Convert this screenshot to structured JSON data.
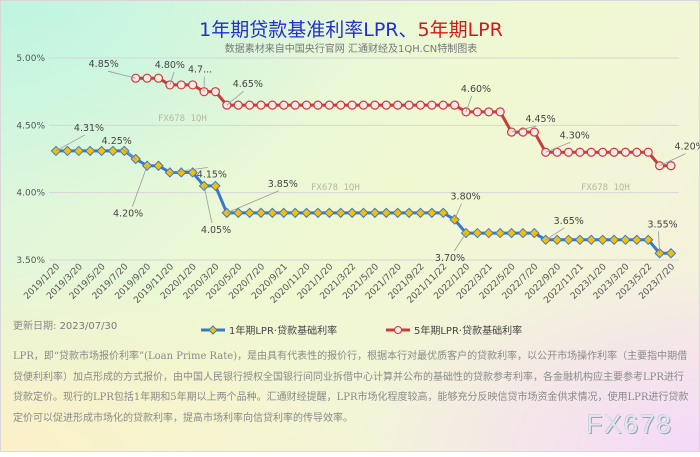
{
  "title": {
    "part1": "1年期贷款基准利率LPR、",
    "part2": "5年期LPR"
  },
  "subtitle": "数据素材来自中国央行官网 汇通财经及1QH.CN特制图表",
  "update": {
    "label": "更新日期:",
    "value": "2023/07/30"
  },
  "description": "LPR，即“贷款市场报价利率”(Loan Prime Rate)，是由具有代表性的报价行，根据本行对最优质客户的贷款利率，以公开市场操作利率（主要指中期借贷便利利率）加点形成的方式报价，由中国人民银行授权全国银行间同业拆借中心计算并公布的基础性的贷款参考利率，各金融机构应主要参考LPR进行贷款定价。现行的LPR包括1年期和5年期以上两个品种。汇通财经提醒，LPR市场化程度较高，能够充分反映信贷市场资金供求情况，使用LPR进行贷款定价可以促进形成市场化的贷款利率，提高市场利率向信贷利率的传导效率。",
  "brand": "FX678",
  "watermark": "FX678   1QH",
  "colors": {
    "one_year": "#3c78c8",
    "one_year_marker": "#f5c000",
    "five_year": "#c83c3c",
    "five_year_marker": "#fde8e8",
    "grid": "#d6d6d6"
  },
  "chart_data": {
    "type": "line",
    "title": "1年期贷款基准利率LPR、5年期LPR",
    "ylim": [
      3.5,
      5.0
    ],
    "yticks": [
      "5.00%",
      "4.50%",
      "4.00%",
      "3.50%"
    ],
    "ytick_values": [
      5.0,
      4.5,
      4.0,
      3.5
    ],
    "grid": true,
    "legend_placement": "bottom",
    "xtick_labels": [
      "2019/1/20",
      "2019/3/20",
      "2019/5/20",
      "2019/7/20",
      "2019/9/20",
      "2019/11/20",
      "2020/1/20",
      "2020/3/20",
      "2020/5/20",
      "2020/7/20",
      "2020/9/21",
      "2020/11/20",
      "2021/1/20",
      "2021/3/22",
      "2021/5/20",
      "2021/7/20",
      "2021/9/22",
      "2021/11/22",
      "2022/1/20",
      "2022/3/21",
      "2022/5/20",
      "2022/7/20",
      "2022/9/20",
      "2022/11/21",
      "2023/1/20",
      "2023/3/20",
      "2023/5/22",
      "2023/7/20"
    ],
    "x": [
      "2019/1",
      "2019/2",
      "2019/3",
      "2019/4",
      "2019/5",
      "2019/6",
      "2019/7",
      "2019/8",
      "2019/9",
      "2019/10",
      "2019/11",
      "2019/12",
      "2020/1",
      "2020/2",
      "2020/3",
      "2020/4",
      "2020/5",
      "2020/6",
      "2020/7",
      "2020/8",
      "2020/9",
      "2020/10",
      "2020/11",
      "2020/12",
      "2021/1",
      "2021/2",
      "2021/3",
      "2021/4",
      "2021/5",
      "2021/6",
      "2021/7",
      "2021/8",
      "2021/9",
      "2021/10",
      "2021/11",
      "2021/12",
      "2022/1",
      "2022/2",
      "2022/3",
      "2022/4",
      "2022/5",
      "2022/6",
      "2022/7",
      "2022/8",
      "2022/9",
      "2022/10",
      "2022/11",
      "2022/12",
      "2023/1",
      "2023/2",
      "2023/3",
      "2023/4",
      "2023/5",
      "2023/6",
      "2023/7"
    ],
    "series": [
      {
        "name": "1年期LPR·贷款基础利率",
        "values": [
          4.31,
          4.31,
          4.31,
          4.31,
          4.31,
          4.31,
          4.31,
          4.25,
          4.2,
          4.2,
          4.15,
          4.15,
          4.15,
          4.05,
          4.05,
          3.85,
          3.85,
          3.85,
          3.85,
          3.85,
          3.85,
          3.85,
          3.85,
          3.85,
          3.85,
          3.85,
          3.85,
          3.85,
          3.85,
          3.85,
          3.85,
          3.85,
          3.85,
          3.85,
          3.85,
          3.8,
          3.7,
          3.7,
          3.7,
          3.7,
          3.7,
          3.7,
          3.7,
          3.65,
          3.65,
          3.65,
          3.65,
          3.65,
          3.65,
          3.65,
          3.65,
          3.65,
          3.65,
          3.55,
          3.55
        ],
        "annotations": [
          {
            "i": 0,
            "text": "4.31%"
          },
          {
            "i": 7,
            "text": "4.25%"
          },
          {
            "i": 8,
            "text": "4.20%"
          },
          {
            "i": 10,
            "text": "4.15%"
          },
          {
            "i": 13,
            "text": "4.05%"
          },
          {
            "i": 15,
            "text": "3.85%"
          },
          {
            "i": 35,
            "text": "3.80%"
          },
          {
            "i": 36,
            "text": "3.70%"
          },
          {
            "i": 43,
            "text": "3.65%"
          },
          {
            "i": 53,
            "text": "3.55%"
          }
        ]
      },
      {
        "name": "5年期LPR·贷款基础利率",
        "values": [
          null,
          null,
          null,
          null,
          null,
          null,
          null,
          4.85,
          4.85,
          4.85,
          4.8,
          4.8,
          4.8,
          4.75,
          4.75,
          4.65,
          4.65,
          4.65,
          4.65,
          4.65,
          4.65,
          4.65,
          4.65,
          4.65,
          4.65,
          4.65,
          4.65,
          4.65,
          4.65,
          4.65,
          4.65,
          4.65,
          4.65,
          4.65,
          4.65,
          4.65,
          4.6,
          4.6,
          4.6,
          4.6,
          4.45,
          4.45,
          4.45,
          4.3,
          4.3,
          4.3,
          4.3,
          4.3,
          4.3,
          4.3,
          4.3,
          4.3,
          4.3,
          4.2,
          4.2
        ],
        "annotations": [
          {
            "i": 7,
            "text": "4.85%"
          },
          {
            "i": 10,
            "text": "4.80%"
          },
          {
            "i": 13,
            "text": "4.7..."
          },
          {
            "i": 15,
            "text": "4.65%"
          },
          {
            "i": 36,
            "text": "4.60%"
          },
          {
            "i": 40,
            "text": "4.45%"
          },
          {
            "i": 43,
            "text": "4.30%"
          },
          {
            "i": 53,
            "text": "4.20%"
          }
        ]
      }
    ]
  }
}
